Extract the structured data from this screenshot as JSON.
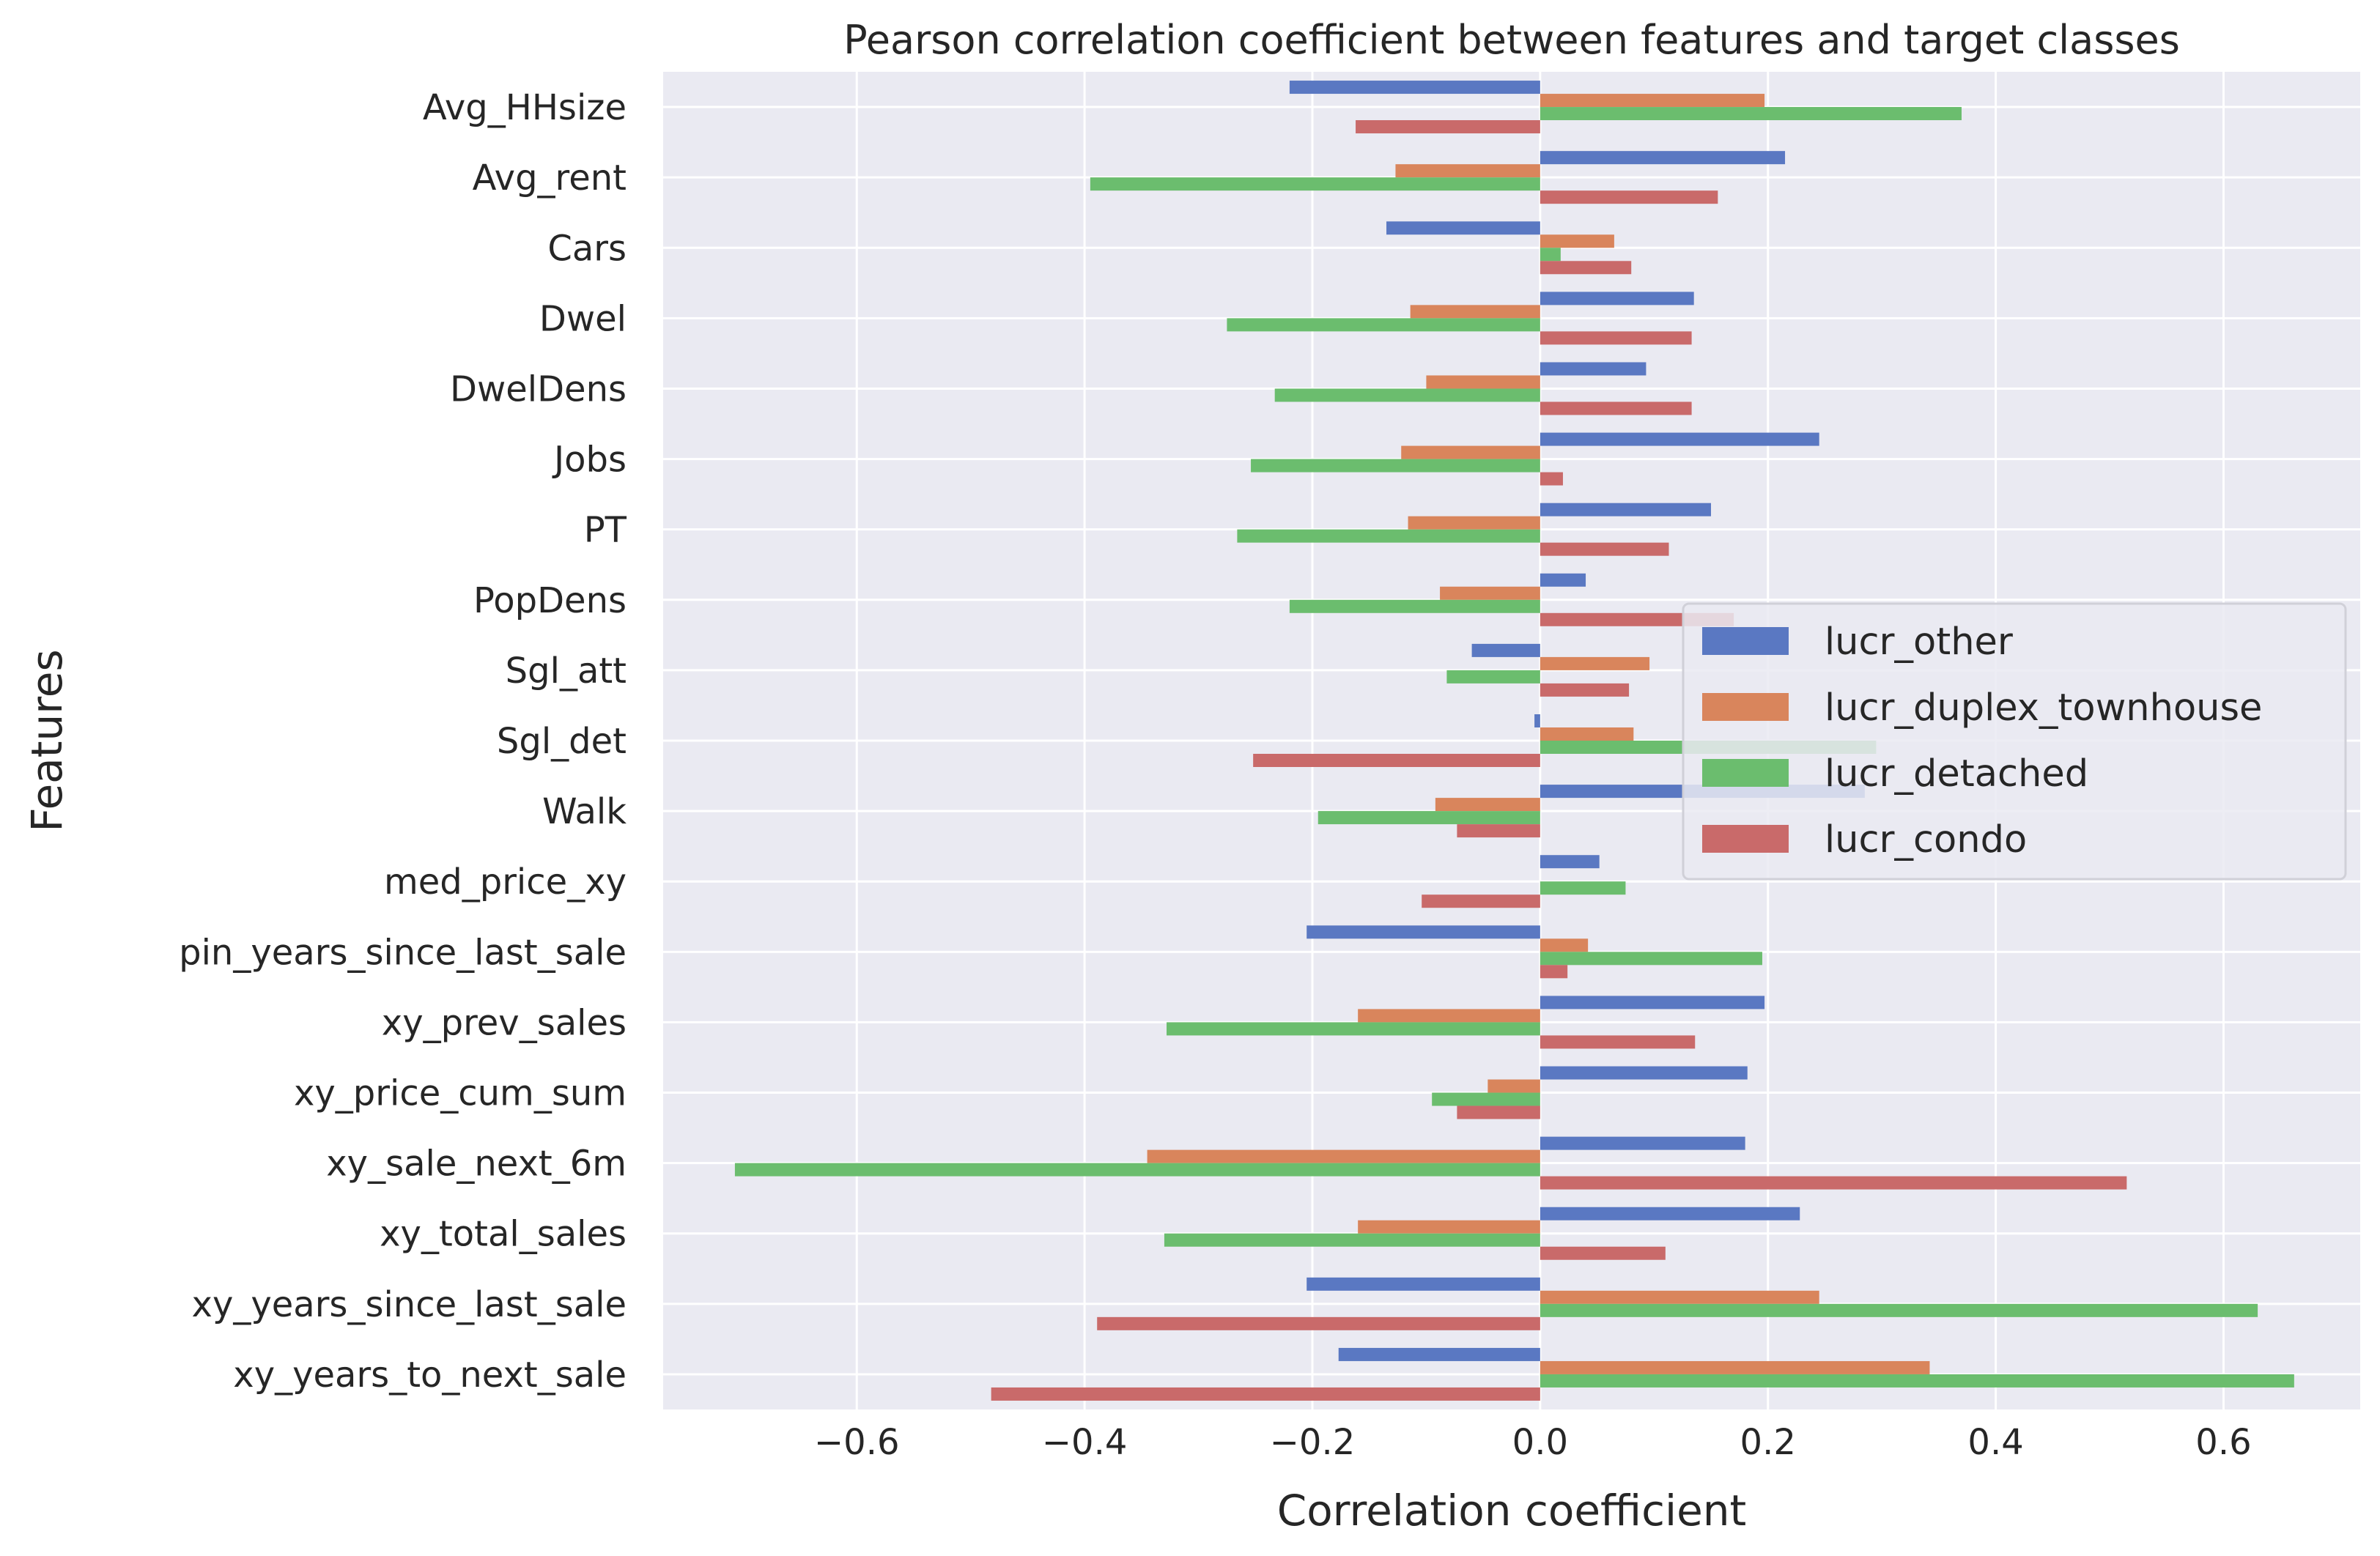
{
  "chart_data": {
    "type": "bar",
    "orientation": "horizontal",
    "title": "Pearson correlation coefficient between features and target classes",
    "xlabel": "Correlation coefficient",
    "ylabel": "Features",
    "xlim": [
      -0.77,
      0.72
    ],
    "xticks": [
      -0.6,
      -0.4,
      -0.2,
      0.0,
      0.2,
      0.4,
      0.6
    ],
    "xtick_labels": [
      "−0.6",
      "−0.4",
      "−0.2",
      "0.0",
      "0.2",
      "0.4",
      "0.6"
    ],
    "grid": true,
    "legend_position": "center-right",
    "categories": [
      "Avg_HHsize",
      "Avg_rent",
      "Cars",
      "Dwel",
      "DwelDens",
      "Jobs",
      "PT",
      "PopDens",
      "Sgl_att",
      "Sgl_det",
      "Walk",
      "med_price_xy",
      "pin_years_since_last_sale",
      "xy_prev_sales",
      "xy_price_cum_sum",
      "xy_sale_next_6m",
      "xy_total_sales",
      "xy_years_since_last_sale",
      "xy_years_to_next_sale"
    ],
    "series": [
      {
        "name": "lucr_other",
        "color": "#5a78c2",
        "values": [
          -0.22,
          0.215,
          -0.135,
          0.135,
          0.093,
          0.245,
          0.15,
          0.04,
          -0.06,
          -0.005,
          0.285,
          0.052,
          -0.205,
          0.197,
          0.182,
          0.18,
          0.228,
          -0.205,
          -0.177
        ]
      },
      {
        "name": "lucr_duplex_townhouse",
        "color": "#d9855c",
        "values": [
          0.197,
          -0.127,
          0.065,
          -0.114,
          -0.1,
          -0.122,
          -0.116,
          -0.088,
          0.096,
          0.082,
          -0.092,
          0.0,
          0.042,
          -0.16,
          -0.046,
          -0.345,
          -0.16,
          0.245,
          0.342
        ]
      },
      {
        "name": "lucr_detached",
        "color": "#6bbd6e",
        "values": [
          0.37,
          -0.395,
          0.018,
          -0.275,
          -0.233,
          -0.254,
          -0.266,
          -0.22,
          -0.082,
          0.295,
          -0.195,
          0.075,
          0.195,
          -0.328,
          -0.095,
          -0.707,
          -0.33,
          0.63,
          0.662
        ]
      },
      {
        "name": "lucr_condo",
        "color": "#c96a6a",
        "values": [
          -0.162,
          0.156,
          0.08,
          0.133,
          0.133,
          0.02,
          0.113,
          0.17,
          0.078,
          -0.252,
          -0.073,
          -0.104,
          0.024,
          0.136,
          -0.073,
          0.515,
          0.11,
          -0.389,
          -0.482
        ]
      }
    ]
  }
}
